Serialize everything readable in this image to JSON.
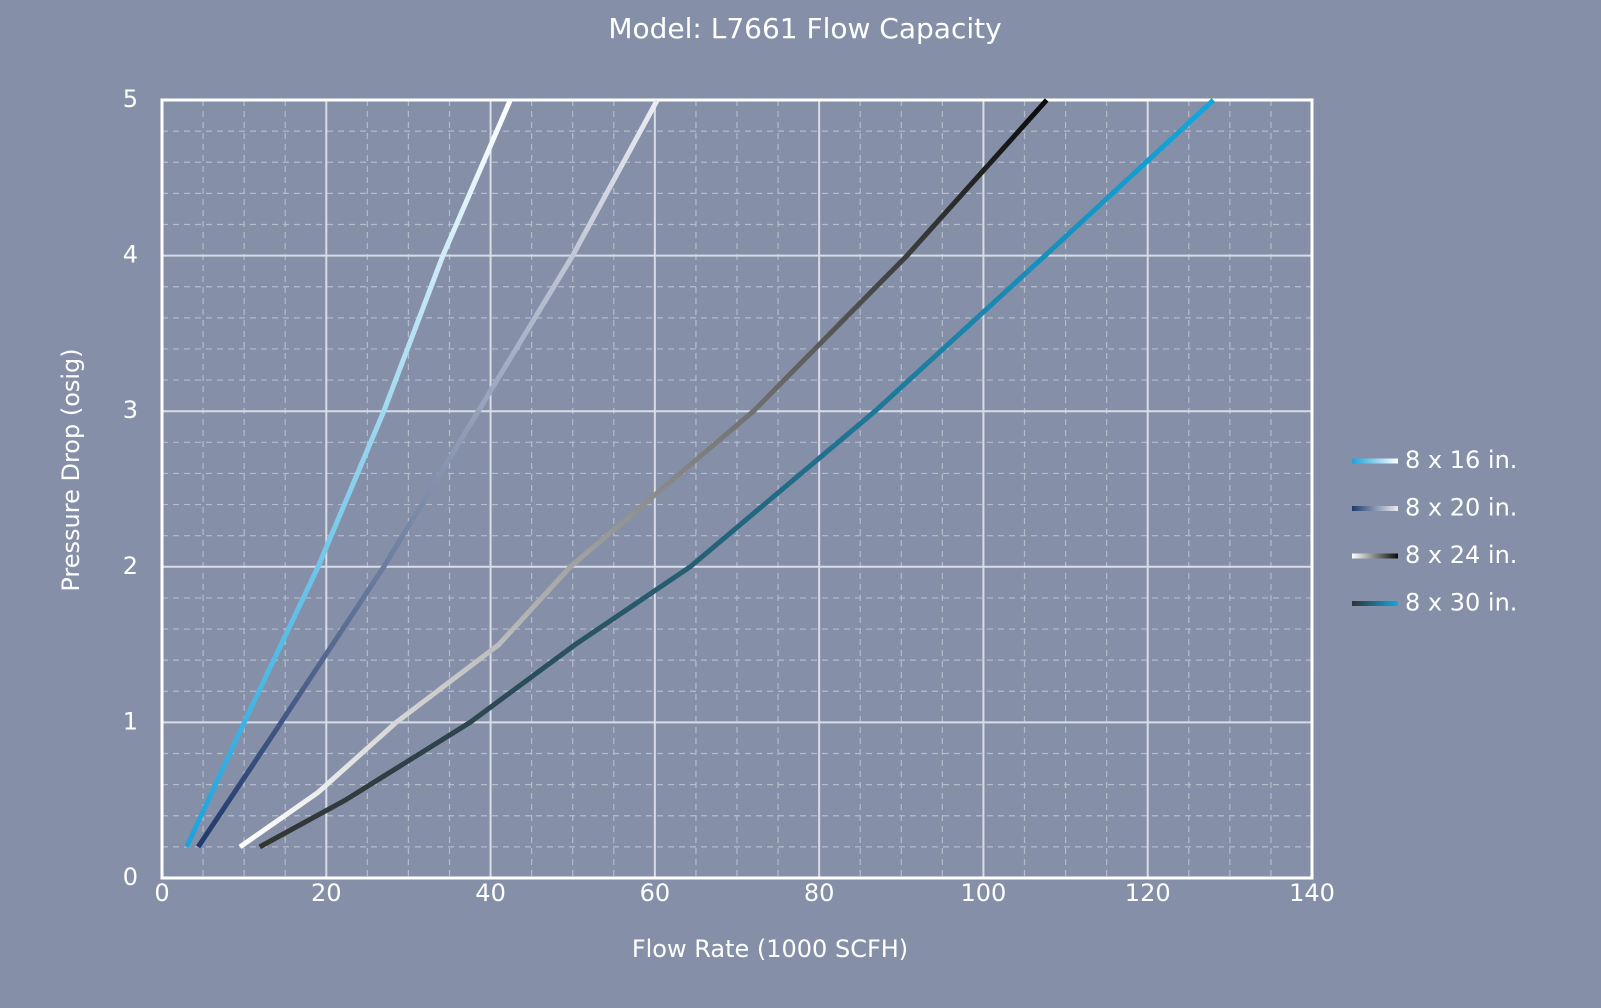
{
  "chart_data": {
    "type": "line",
    "title": "Model: L7661 Flow Capacity",
    "x_label": "Flow Rate (1000 SCFH)",
    "y_label": "Pressure Drop (osig)",
    "xlim": [
      0,
      140
    ],
    "ylim": [
      0,
      5
    ],
    "xticks": [
      0,
      20,
      40,
      60,
      80,
      100,
      120,
      140
    ],
    "yticks": [
      0,
      1,
      2,
      3,
      4,
      5
    ],
    "xminor": [
      5,
      10,
      15,
      25,
      30,
      35,
      45,
      50,
      55,
      65,
      70,
      75,
      85,
      90,
      95,
      105,
      110,
      115,
      125,
      130,
      135
    ],
    "yminor": [
      0.2,
      0.4,
      0.6,
      0.8,
      1.2,
      1.4,
      1.6,
      1.8,
      2.2,
      2.4,
      2.6,
      2.8,
      3.2,
      3.4,
      3.6,
      3.8,
      4.2,
      4.4,
      4.6,
      4.8
    ],
    "grid": true,
    "legend": "right",
    "series": [
      {
        "name": "8 x 16 in.",
        "color": [
          "#1aa3dc",
          "#ffffff"
        ],
        "x": [
          3,
          10,
          19,
          27,
          34.2,
          42.4
        ],
        "values": [
          0.2,
          1,
          2,
          3,
          4,
          5
        ]
      },
      {
        "name": "8 x 20 in.",
        "color": [
          "#1f3a6e",
          "#ececf2"
        ],
        "x": [
          4.4,
          14.5,
          27,
          38.5,
          50,
          60.3
        ],
        "values": [
          0.2,
          1,
          2,
          3,
          4,
          5
        ]
      },
      {
        "name": "8 x 24 in.",
        "color": [
          "#ffffff",
          "#0a0a0a"
        ],
        "x": [
          9.5,
          19,
          28.5,
          41,
          49.7,
          72,
          90.7,
          107.7
        ],
        "values": [
          0.2,
          0.55,
          1,
          1.5,
          2,
          3,
          4,
          5
        ]
      },
      {
        "name": "8 x 30 in.",
        "color": [
          "#333333",
          "#10a8e0"
        ],
        "x": [
          11.9,
          22.3,
          37.5,
          50.3,
          64.3,
          86.8,
          107.5,
          128
        ],
        "values": [
          0.2,
          0.5,
          1,
          1.5,
          2,
          3,
          4,
          5
        ]
      }
    ]
  }
}
